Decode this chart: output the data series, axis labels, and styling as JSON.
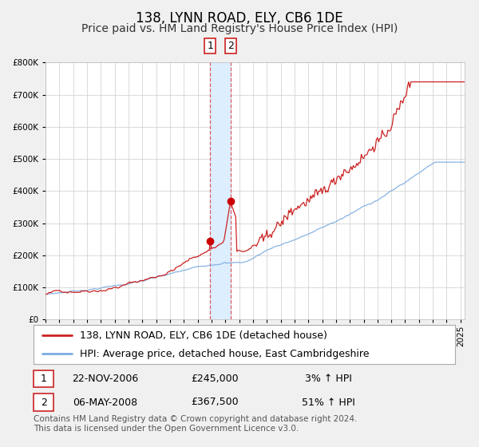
{
  "title": "138, LYNN ROAD, ELY, CB6 1DE",
  "subtitle": "Price paid vs. HM Land Registry's House Price Index (HPI)",
  "legend_line1": "138, LYNN ROAD, ELY, CB6 1DE (detached house)",
  "legend_line2": "HPI: Average price, detached house, East Cambridgeshire",
  "footer1": "Contains HM Land Registry data © Crown copyright and database right 2024.",
  "footer2": "This data is licensed under the Open Government Licence v3.0.",
  "transaction1_date": "22-NOV-2006",
  "transaction1_price": "£245,000",
  "transaction1_hpi": "3% ↑ HPI",
  "transaction2_date": "06-MAY-2008",
  "transaction2_price": "£367,500",
  "transaction2_hpi": "51% ↑ HPI",
  "hpi_color": "#7aabe0",
  "price_color": "#cc2222",
  "dot_color": "#cc0000",
  "vspan_color": "#ddeeff",
  "vline_color": "#dd4444",
  "background_color": "#f0f0f0",
  "plot_bg_color": "#ffffff",
  "grid_color": "#cccccc",
  "title_fontsize": 12,
  "subtitle_fontsize": 10,
  "tick_fontsize": 7.5,
  "legend_fontsize": 9,
  "footer_fontsize": 7.5,
  "ylim": [
    0,
    800000
  ],
  "xlim_start": 1995.0,
  "xlim_end": 2025.3,
  "transaction1_x": 2006.9,
  "transaction2_x": 2008.37,
  "transaction1_y": 245000,
  "transaction2_y": 367500
}
